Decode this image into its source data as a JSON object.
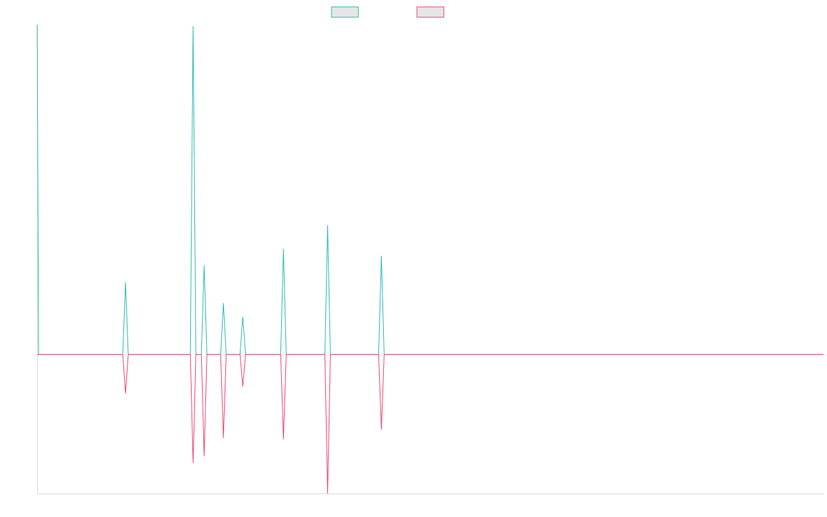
{
  "chart_data": {
    "type": "line",
    "title": "",
    "xlabel": "",
    "ylabel": "",
    "x_range": [
      0,
      1140
    ],
    "y_range": [
      -1.0,
      2.37
    ],
    "grid": false,
    "legend": {
      "placement": "top-center"
    },
    "series": [
      {
        "color": "#2bbbad",
        "legend_fill": "#e6e6e6",
        "points": [
          [
            0,
            2.37
          ],
          [
            2,
            0
          ],
          [
            124,
            0
          ],
          [
            128,
            0.52
          ],
          [
            132,
            0
          ],
          [
            222,
            0
          ],
          [
            226,
            2.36
          ],
          [
            230,
            0
          ],
          [
            238,
            0
          ],
          [
            242,
            0.64
          ],
          [
            246,
            0
          ],
          [
            266,
            0
          ],
          [
            270,
            0.37
          ],
          [
            274,
            0
          ],
          [
            294,
            0
          ],
          [
            298,
            0.27
          ],
          [
            302,
            0
          ],
          [
            353,
            0
          ],
          [
            357,
            0.76
          ],
          [
            361,
            0
          ],
          [
            417,
            0
          ],
          [
            421,
            0.93
          ],
          [
            425,
            0
          ],
          [
            495,
            0
          ],
          [
            499,
            0.71
          ],
          [
            503,
            0
          ],
          [
            1140,
            0
          ]
        ]
      },
      {
        "color": "#f0446f",
        "legend_fill": "#e6e6e6",
        "points": [
          [
            0,
            0
          ],
          [
            124,
            0
          ],
          [
            128,
            -0.28
          ],
          [
            132,
            0
          ],
          [
            222,
            0
          ],
          [
            226,
            -0.78
          ],
          [
            230,
            0
          ],
          [
            238,
            0
          ],
          [
            242,
            -0.73
          ],
          [
            246,
            0
          ],
          [
            266,
            0
          ],
          [
            270,
            -0.6
          ],
          [
            274,
            0
          ],
          [
            294,
            0
          ],
          [
            298,
            -0.23
          ],
          [
            302,
            0
          ],
          [
            353,
            0
          ],
          [
            357,
            -0.61
          ],
          [
            361,
            0
          ],
          [
            417,
            0
          ],
          [
            421,
            -1.0
          ],
          [
            425,
            0
          ],
          [
            495,
            0
          ],
          [
            499,
            -0.54
          ],
          [
            503,
            0
          ],
          [
            1140,
            0
          ]
        ]
      }
    ]
  }
}
